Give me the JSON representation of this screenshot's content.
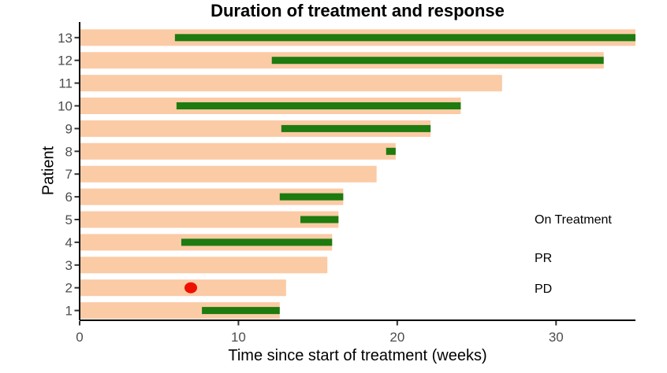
{
  "chart_data": {
    "type": "bar",
    "orientation": "horizontal",
    "title": "Duration of treatment and response",
    "xlabel": "Time since start of treatment (weeks)",
    "ylabel": "Patient",
    "xlim": [
      0,
      35
    ],
    "x_ticks": [
      0,
      10,
      20,
      30
    ],
    "grid": false,
    "legend_position": "right-inside",
    "patients": [
      {
        "id": 13,
        "on_treatment": [
          0,
          35.0
        ],
        "pr": [
          6.0,
          35.0
        ],
        "pd": null
      },
      {
        "id": 12,
        "on_treatment": [
          0,
          33.0
        ],
        "pr": [
          12.1,
          33.0
        ],
        "pd": null
      },
      {
        "id": 11,
        "on_treatment": [
          0,
          26.6
        ],
        "pr": null,
        "pd": null
      },
      {
        "id": 10,
        "on_treatment": [
          0,
          24.0
        ],
        "pr": [
          6.1,
          24.0
        ],
        "pd": null
      },
      {
        "id": 9,
        "on_treatment": [
          0,
          22.1
        ],
        "pr": [
          12.7,
          22.1
        ],
        "pd": null
      },
      {
        "id": 8,
        "on_treatment": [
          0,
          19.9
        ],
        "pr": [
          19.3,
          19.9
        ],
        "pd": null
      },
      {
        "id": 7,
        "on_treatment": [
          0,
          18.7
        ],
        "pr": null,
        "pd": null
      },
      {
        "id": 6,
        "on_treatment": [
          0,
          16.6
        ],
        "pr": [
          12.6,
          16.6
        ],
        "pd": null
      },
      {
        "id": 5,
        "on_treatment": [
          0,
          16.3
        ],
        "pr": [
          13.9,
          16.3
        ],
        "pd": null
      },
      {
        "id": 4,
        "on_treatment": [
          0,
          15.9
        ],
        "pr": [
          6.4,
          15.9
        ],
        "pd": null
      },
      {
        "id": 3,
        "on_treatment": [
          0,
          15.6
        ],
        "pr": null,
        "pd": null
      },
      {
        "id": 2,
        "on_treatment": [
          0,
          13.0
        ],
        "pr": null,
        "pd": 7.0
      },
      {
        "id": 1,
        "on_treatment": [
          0,
          12.6
        ],
        "pr": [
          7.7,
          12.6
        ],
        "pd": null
      }
    ],
    "legend": {
      "items": [
        {
          "label": "On Treatment",
          "type": "rect",
          "color": "#FBCBA6"
        },
        {
          "label": "PR",
          "type": "line",
          "color": "#1E7B0F"
        },
        {
          "label": "PD",
          "type": "dot",
          "color": "#EE1100"
        }
      ]
    },
    "colors": {
      "on_treatment": "#FBCBA6",
      "pr": "#1E7B0F",
      "pd": "#EE1100",
      "axis_line": "#000000",
      "tick": "#333333",
      "tick_label": "#4d4d4d"
    }
  }
}
